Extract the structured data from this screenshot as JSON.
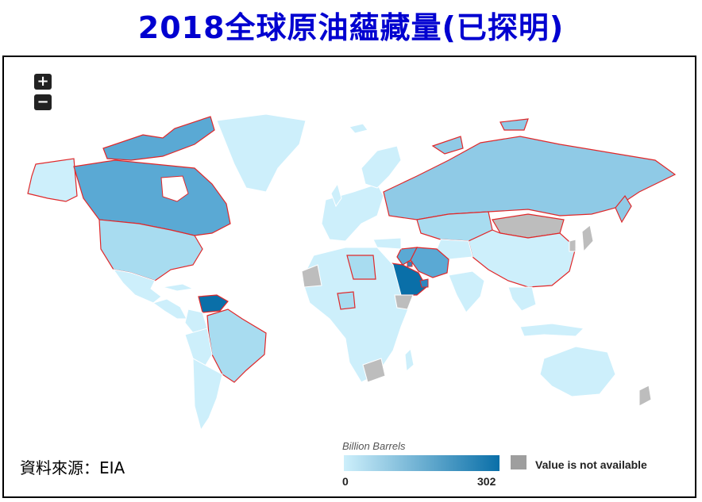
{
  "title": "2018全球原油蘊藏量(已探明)",
  "map": {
    "zoom_in_label": "+",
    "zoom_out_label": "−",
    "colors": {
      "very_light": "#cdeffb",
      "light": "#a8dcf0",
      "mid": "#8fcae6",
      "mid_dark": "#5aa9d4",
      "dark": "#2f86bf",
      "darkest": "#0a6fa8",
      "not_available": "#bdbdbd",
      "highlight_border": "#e0282a",
      "country_border": "#ffffff"
    },
    "highlighted_countries": [
      "Canada",
      "United States",
      "Russia",
      "Kazakhstan",
      "China",
      "Venezuela",
      "Brazil",
      "Saudi Arabia",
      "Iran",
      "Iraq",
      "Kuwait",
      "United Arab Emirates",
      "Libya",
      "Nigeria"
    ]
  },
  "source": "資料來源：EIA",
  "legend": {
    "title": "Billion Barrels",
    "min": "0",
    "max": "302",
    "min_color": "#cdeffb",
    "max_color": "#0a6fa8",
    "na_label": "Value is not available",
    "na_color": "#9e9e9e"
  }
}
